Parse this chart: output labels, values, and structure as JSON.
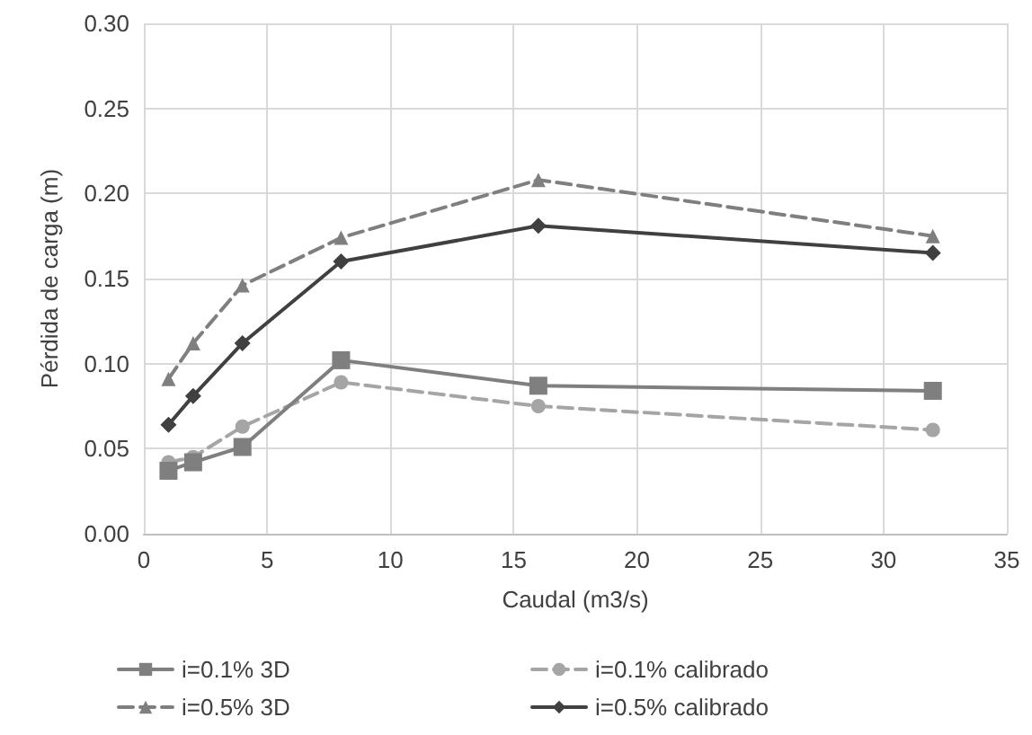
{
  "chart_data": {
    "type": "line",
    "xlabel": "Caudal (m3/s)",
    "ylabel": "Pérdida de carga (m)",
    "x": [
      1,
      2,
      4,
      8,
      16,
      32
    ],
    "xlim": [
      0,
      35
    ],
    "xticks": [
      0,
      5,
      10,
      15,
      20,
      25,
      30,
      35
    ],
    "ylim": [
      0,
      0.3
    ],
    "yticks": [
      {
        "value": 0,
        "label": "0.00"
      },
      {
        "value": 0.05,
        "label": "0.05"
      },
      {
        "value": 0.1,
        "label": "0.10"
      },
      {
        "value": 0.15,
        "label": "0.15"
      },
      {
        "value": 0.2,
        "label": "0.20"
      },
      {
        "value": 0.25,
        "label": "0.25"
      },
      {
        "value": 0.3,
        "label": "0.30"
      }
    ],
    "grid": true,
    "legend": "bottom",
    "series": [
      {
        "name": "i=0.1% 3D",
        "color": "#7f7f7f",
        "marker": "square",
        "line_style": "solid",
        "values": [
          0.037,
          0.042,
          0.051,
          0.102,
          0.087,
          0.084
        ]
      },
      {
        "name": "i=0.1% calibrado",
        "color": "#a5a5a5",
        "marker": "circle",
        "line_style": "dashed",
        "values": [
          0.042,
          0.045,
          0.063,
          0.089,
          0.075,
          0.061
        ]
      },
      {
        "name": "i=0.5% 3D",
        "color": "#7f7f7f",
        "marker": "triangle",
        "line_style": "dashed",
        "values": [
          0.091,
          0.112,
          0.146,
          0.174,
          0.208,
          0.175
        ]
      },
      {
        "name": "i=0.5% calibrado",
        "color": "#404040",
        "marker": "diamond",
        "line_style": "solid",
        "values": [
          0.064,
          0.081,
          0.112,
          0.16,
          0.181,
          0.165
        ]
      }
    ]
  }
}
